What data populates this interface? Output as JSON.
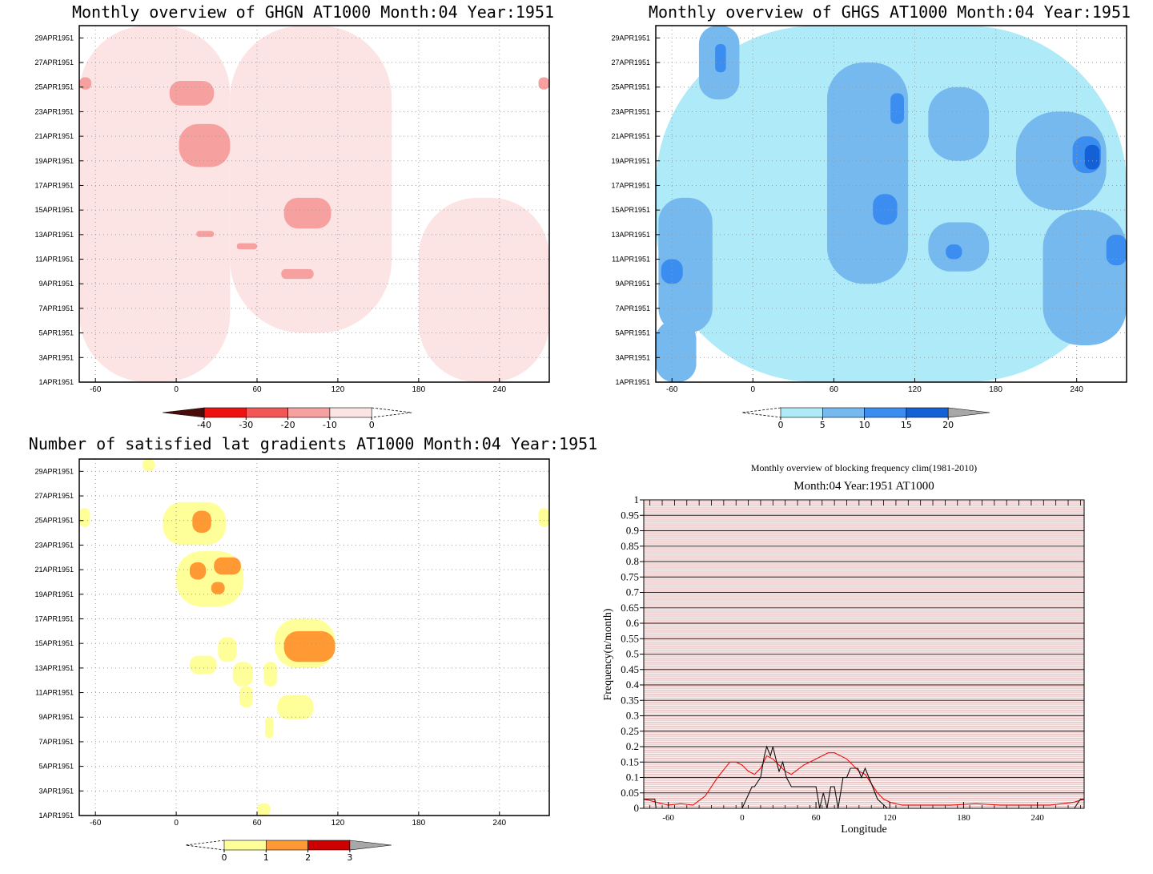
{
  "colors": {
    "ghgn_scale": [
      "#4a0b0b",
      "#ee1111",
      "#f25656",
      "#f7a0a0",
      "#fde4e4"
    ],
    "ghgs_scale": [
      "#aeeaf8",
      "#76b9ef",
      "#3b8def",
      "#1460d6"
    ],
    "grad_scale": [
      "#ffff99",
      "#ff9933",
      "#cc0000"
    ],
    "grey": "#a8a8a8",
    "line_red": "#e81010",
    "line_black": "#111111",
    "stripe_red": "#c97a7a"
  },
  "chart_data": [
    {
      "id": "ghgn",
      "type": "heatmap",
      "title": "Monthly overview of GHGN AT1000 Month:04 Year:1951",
      "x_ticks": [
        "-60",
        "0",
        "60",
        "120",
        "180",
        "240"
      ],
      "x_tick_values": [
        -60,
        0,
        60,
        120,
        180,
        240
      ],
      "xlim": [
        -72,
        277
      ],
      "y_ticks": [
        "1APR1951",
        "3APR1951",
        "5APR1951",
        "7APR1951",
        "9APR1951",
        "11APR1951",
        "13APR1951",
        "15APR1951",
        "17APR1951",
        "19APR1951",
        "21APR1951",
        "23APR1951",
        "25APR1951",
        "27APR1951",
        "29APR1951"
      ],
      "ylim": [
        1,
        30
      ],
      "colorbar": {
        "labels": [
          "-40",
          "-30",
          "-20",
          "-10",
          "0"
        ],
        "levels": [
          -40,
          -30,
          -20,
          -10,
          0
        ]
      },
      "regions": [
        {
          "level": -10,
          "lon": [
            -72,
            40
          ],
          "day": [
            1,
            30
          ]
        },
        {
          "level": -10,
          "lon": [
            40,
            160
          ],
          "day": [
            5,
            30
          ]
        },
        {
          "level": -10,
          "lon": [
            180,
            277
          ],
          "day": [
            1,
            16
          ]
        },
        {
          "level": -20,
          "lon": [
            -5,
            28
          ],
          "day": [
            23.5,
            25.5
          ]
        },
        {
          "level": -20,
          "lon": [
            2,
            40
          ],
          "day": [
            18.5,
            22
          ]
        },
        {
          "level": -20,
          "lon": [
            80,
            115
          ],
          "day": [
            13.5,
            16
          ]
        },
        {
          "level": -20,
          "lon": [
            78,
            102
          ],
          "day": [
            9.4,
            10.2
          ]
        },
        {
          "level": -20,
          "lon": [
            -72,
            -63
          ],
          "day": [
            24.8,
            25.8
          ]
        },
        {
          "level": -20,
          "lon": [
            269,
            277
          ],
          "day": [
            24.8,
            25.8
          ]
        },
        {
          "level": -20,
          "lon": [
            15,
            28
          ],
          "day": [
            12.8,
            13.3
          ]
        },
        {
          "level": -20,
          "lon": [
            45,
            60
          ],
          "day": [
            11.8,
            12.3
          ]
        }
      ]
    },
    {
      "id": "ghgs",
      "type": "heatmap",
      "title": "Monthly overview of GHGS AT1000 Month:04 Year:1951",
      "x_ticks": [
        "-60",
        "0",
        "60",
        "120",
        "180",
        "240"
      ],
      "x_tick_values": [
        -60,
        0,
        60,
        120,
        180,
        240
      ],
      "xlim": [
        -72,
        277
      ],
      "y_ticks": [
        "1APR1951",
        "3APR1951",
        "5APR1951",
        "7APR1951",
        "9APR1951",
        "11APR1951",
        "13APR1951",
        "15APR1951",
        "17APR1951",
        "19APR1951",
        "21APR1951",
        "23APR1951",
        "25APR1951",
        "27APR1951",
        "29APR1951"
      ],
      "ylim": [
        1,
        30
      ],
      "colorbar": {
        "labels": [
          "0",
          "5",
          "10",
          "15",
          "20"
        ],
        "levels": [
          0,
          5,
          10,
          15,
          20
        ]
      },
      "regions": [
        {
          "level": 5,
          "lon": [
            -72,
            277
          ],
          "day": [
            1,
            30
          ]
        },
        {
          "level": 10,
          "lon": [
            -70,
            -30
          ],
          "day": [
            5,
            16
          ]
        },
        {
          "level": 10,
          "lon": [
            -40,
            -10
          ],
          "day": [
            24,
            30
          ]
        },
        {
          "level": 10,
          "lon": [
            55,
            115
          ],
          "day": [
            9,
            27
          ]
        },
        {
          "level": 10,
          "lon": [
            130,
            175
          ],
          "day": [
            19,
            25
          ]
        },
        {
          "level": 10,
          "lon": [
            195,
            262
          ],
          "day": [
            15,
            23
          ]
        },
        {
          "level": 10,
          "lon": [
            215,
            277
          ],
          "day": [
            4,
            15
          ]
        },
        {
          "level": 10,
          "lon": [
            -72,
            -42
          ],
          "day": [
            1,
            6
          ]
        },
        {
          "level": 10,
          "lon": [
            130,
            175
          ],
          "day": [
            10,
            14
          ]
        },
        {
          "level": 15,
          "lon": [
            -68,
            -52
          ],
          "day": [
            9,
            11
          ]
        },
        {
          "level": 15,
          "lon": [
            89,
            107
          ],
          "day": [
            13.8,
            16.3
          ]
        },
        {
          "level": 15,
          "lon": [
            102,
            112
          ],
          "day": [
            22,
            24.5
          ]
        },
        {
          "level": 15,
          "lon": [
            237,
            258
          ],
          "day": [
            18,
            21
          ]
        },
        {
          "level": 15,
          "lon": [
            262,
            277
          ],
          "day": [
            10.5,
            13
          ]
        },
        {
          "level": 15,
          "lon": [
            -28,
            -20
          ],
          "day": [
            26.2,
            28.5
          ]
        },
        {
          "level": 15,
          "lon": [
            143,
            155
          ],
          "day": [
            11,
            12.2
          ]
        },
        {
          "level": 20,
          "lon": [
            246,
            257
          ],
          "day": [
            18.3,
            20.3
          ]
        }
      ]
    },
    {
      "id": "grad",
      "type": "heatmap",
      "title": "Number of satisfied lat gradients AT1000 Month:04 Year:1951",
      "x_ticks": [
        "-60",
        "0",
        "60",
        "120",
        "180",
        "240"
      ],
      "x_tick_values": [
        -60,
        0,
        60,
        120,
        180,
        240
      ],
      "xlim": [
        -72,
        277
      ],
      "y_ticks": [
        "1APR1951",
        "3APR1951",
        "5APR1951",
        "7APR1951",
        "9APR1951",
        "11APR1951",
        "13APR1951",
        "15APR1951",
        "17APR1951",
        "19APR1951",
        "21APR1951",
        "23APR1951",
        "25APR1951",
        "27APR1951",
        "29APR1951"
      ],
      "ylim": [
        1,
        30
      ],
      "colorbar": {
        "labels": [
          "0",
          "1",
          "2",
          "3"
        ],
        "levels": [
          0,
          1,
          2,
          3
        ]
      },
      "regions": [
        {
          "level": 1,
          "lon": [
            -25,
            -16
          ],
          "day": [
            29,
            30
          ]
        },
        {
          "level": 1,
          "lon": [
            -72,
            -64
          ],
          "day": [
            24.5,
            26
          ]
        },
        {
          "level": 1,
          "lon": [
            269,
            277
          ],
          "day": [
            24.5,
            26
          ]
        },
        {
          "level": 1,
          "lon": [
            -10,
            37
          ],
          "day": [
            23,
            26.5
          ]
        },
        {
          "level": 1,
          "lon": [
            0,
            50
          ],
          "day": [
            18,
            22.5
          ]
        },
        {
          "level": 1,
          "lon": [
            73,
            118
          ],
          "day": [
            13,
            17
          ]
        },
        {
          "level": 1,
          "lon": [
            10,
            30
          ],
          "day": [
            12.5,
            14
          ]
        },
        {
          "level": 1,
          "lon": [
            31,
            45
          ],
          "day": [
            13.5,
            15.5
          ]
        },
        {
          "level": 1,
          "lon": [
            42,
            57
          ],
          "day": [
            11.5,
            13.5
          ]
        },
        {
          "level": 1,
          "lon": [
            65,
            75
          ],
          "day": [
            11.5,
            13.5
          ]
        },
        {
          "level": 1,
          "lon": [
            47,
            57
          ],
          "day": [
            9.8,
            11.5
          ]
        },
        {
          "level": 1,
          "lon": [
            75,
            102
          ],
          "day": [
            8.8,
            10.8
          ]
        },
        {
          "level": 1,
          "lon": [
            66,
            72
          ],
          "day": [
            7.3,
            9
          ]
        },
        {
          "level": 1,
          "lon": [
            60,
            70
          ],
          "day": [
            1,
            2
          ]
        },
        {
          "level": 2,
          "lon": [
            12,
            26
          ],
          "day": [
            24,
            25.8
          ]
        },
        {
          "level": 2,
          "lon": [
            10,
            22
          ],
          "day": [
            20.2,
            21.6
          ]
        },
        {
          "level": 2,
          "lon": [
            28,
            48
          ],
          "day": [
            20.6,
            22
          ]
        },
        {
          "level": 2,
          "lon": [
            26,
            36
          ],
          "day": [
            19,
            20
          ]
        },
        {
          "level": 2,
          "lon": [
            80,
            118
          ],
          "day": [
            13.5,
            16
          ]
        }
      ]
    },
    {
      "id": "blocking",
      "type": "line",
      "title": "Monthly overview of blocking frequency clim(1981-2010)",
      "subtitle": "Month:04 Year:1951  AT1000",
      "xlabel": "Longitude",
      "ylabel": "Frequency(n/month)",
      "x_ticks": [
        "-60",
        "0",
        "60",
        "120",
        "180",
        "240"
      ],
      "x_tick_values": [
        -60,
        0,
        60,
        120,
        180,
        240
      ],
      "xlim": [
        -80,
        278
      ],
      "ylim": [
        0,
        1
      ],
      "y_ticks": [
        "0",
        "0.05",
        "0.1",
        "0.15",
        "0.2",
        "0.25",
        "0.3",
        "0.35",
        "0.4",
        "0.45",
        "0.5",
        "0.55",
        "0.6",
        "0.65",
        "0.7",
        "0.75",
        "0.8",
        "0.85",
        "0.9",
        "0.95",
        "1"
      ],
      "y_tick_values": [
        0,
        0.05,
        0.1,
        0.15,
        0.2,
        0.25,
        0.3,
        0.35,
        0.4,
        0.45,
        0.5,
        0.55,
        0.6,
        0.65,
        0.7,
        0.75,
        0.8,
        0.85,
        0.9,
        0.95,
        1
      ],
      "series": [
        {
          "color": "red",
          "x": [
            -80,
            -70,
            -60,
            -50,
            -40,
            -30,
            -20,
            -10,
            -5,
            0,
            5,
            10,
            15,
            20,
            25,
            30,
            35,
            40,
            50,
            55,
            60,
            65,
            70,
            75,
            80,
            85,
            90,
            95,
            100,
            105,
            110,
            115,
            120,
            130,
            150,
            170,
            190,
            210,
            230,
            250,
            270,
            278
          ],
          "y": [
            0.03,
            0.02,
            0.01,
            0.015,
            0.01,
            0.04,
            0.1,
            0.15,
            0.15,
            0.14,
            0.12,
            0.11,
            0.13,
            0.17,
            0.16,
            0.14,
            0.12,
            0.11,
            0.14,
            0.15,
            0.16,
            0.17,
            0.18,
            0.18,
            0.17,
            0.16,
            0.14,
            0.12,
            0.11,
            0.08,
            0.05,
            0.03,
            0.02,
            0.01,
            0.01,
            0.01,
            0.015,
            0.01,
            0.01,
            0.01,
            0.02,
            0.03
          ]
        },
        {
          "color": "black",
          "x": [
            -80,
            -71,
            -70,
            0,
            8,
            10,
            15,
            18,
            20,
            23,
            25,
            28,
            30,
            33,
            36,
            40,
            60,
            63,
            66,
            69,
            72,
            75,
            78,
            82,
            85,
            88,
            91,
            94,
            97,
            100,
            103,
            106,
            110,
            118,
            270,
            275,
            278
          ],
          "y": [
            0.03,
            0.03,
            0,
            0,
            0.07,
            0.07,
            0.1,
            0.17,
            0.2,
            0.17,
            0.2,
            0.15,
            0.12,
            0.15,
            0.1,
            0.07,
            0.07,
            0,
            0.05,
            0,
            0.07,
            0.07,
            0,
            0.1,
            0.1,
            0.13,
            0.13,
            0.13,
            0.1,
            0.13,
            0.1,
            0.07,
            0.03,
            0,
            0,
            0.03,
            0.03
          ]
        }
      ]
    }
  ]
}
